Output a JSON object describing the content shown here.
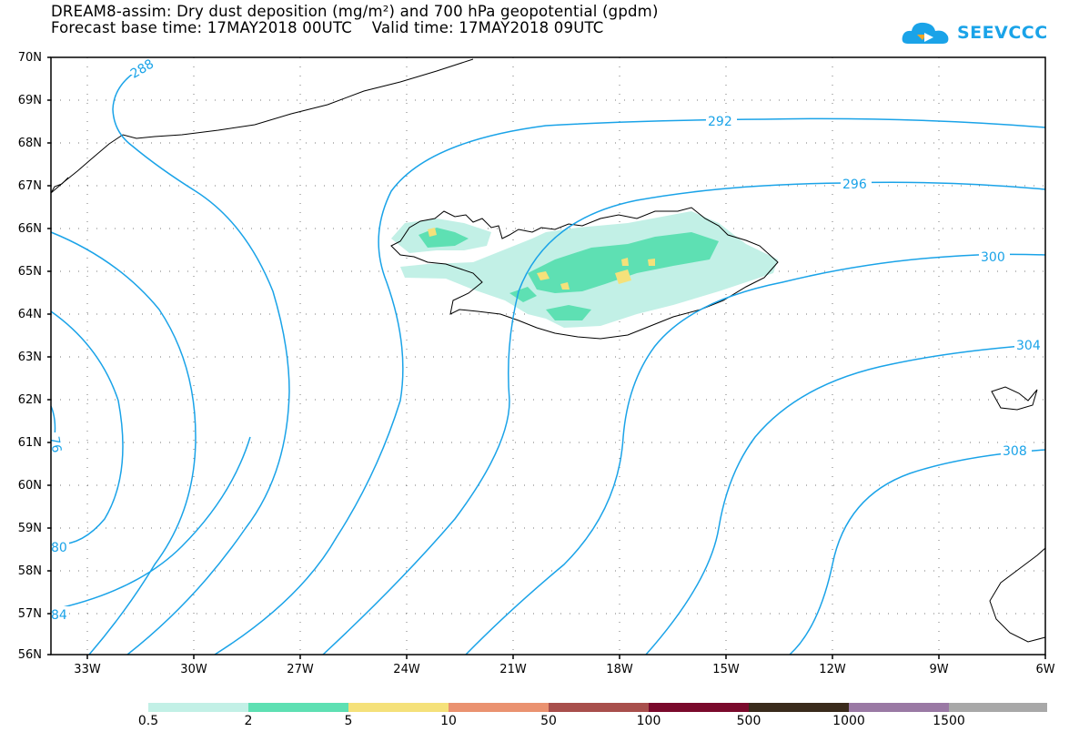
{
  "title": {
    "line1": "DREAM8-assim: Dry dust deposition (mg/m²) and 700 hPa geopotential (gpdm)",
    "line2": "Forecast base time: 17MAY2018 00UTC    Valid time: 17MAY2018 09UTC"
  },
  "logo": {
    "text": "SEEVCCC",
    "color": "#1aa3e8"
  },
  "map": {
    "lat_labels": [
      "70N",
      "69N",
      "68N",
      "67N",
      "66N",
      "65N",
      "64N",
      "63N",
      "62N",
      "61N",
      "60N",
      "59N",
      "58N",
      "57N",
      "56N"
    ],
    "lon_labels": [
      "33W",
      "30W",
      "27W",
      "24W",
      "21W",
      "18W",
      "15W",
      "12W",
      "9W",
      "6W"
    ],
    "contour_color": "#1aa3e8",
    "contour_labels": {
      "c288": "288",
      "c292": "292",
      "c296": "296",
      "c300": "300",
      "c304": "304",
      "c308": "308",
      "c276": "76",
      "c280": "80",
      "c284": "84"
    }
  },
  "colorbar": {
    "colors": [
      "#c2f0e6",
      "#5ee0b3",
      "#f5e17a",
      "#ea9270",
      "#a84f4c",
      "#7a0a2c",
      "#3a2b1c",
      "#9a79a4",
      "#a8a8a8"
    ],
    "labels": [
      "0.5",
      "2",
      "5",
      "10",
      "50",
      "100",
      "500",
      "1000",
      "1500"
    ]
  }
}
